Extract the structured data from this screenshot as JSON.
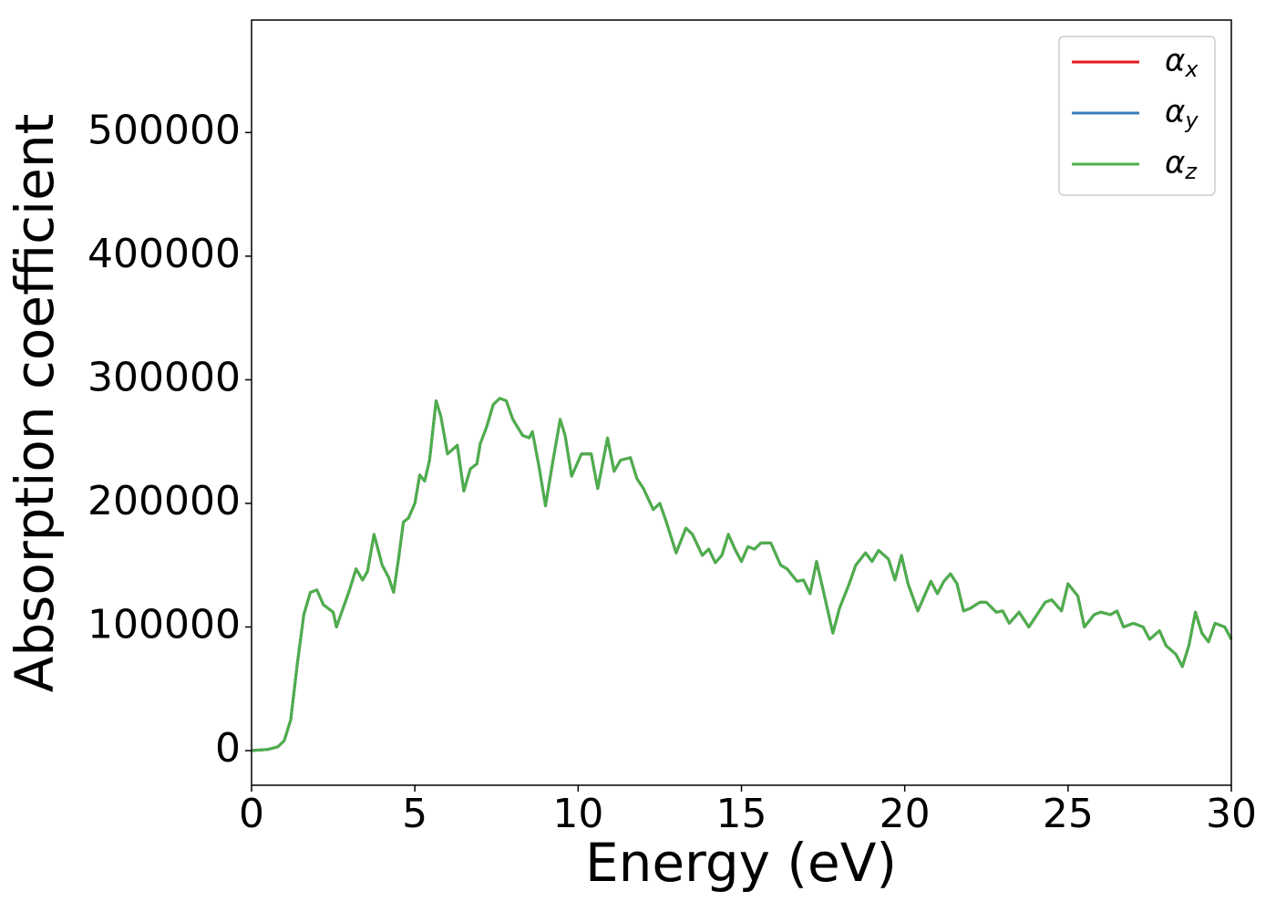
{
  "chart_data": {
    "type": "line",
    "xlabel": "Energy (eV)",
    "ylabel": "Absorption coefficient",
    "x": [
      0,
      0.5,
      0.8,
      1.0,
      1.2,
      1.4,
      1.6,
      1.8,
      2.0,
      2.2,
      2.35,
      2.5,
      2.6,
      2.8,
      3.0,
      3.2,
      3.4,
      3.55,
      3.75,
      3.9,
      4.0,
      4.2,
      4.35,
      4.5,
      4.65,
      4.8,
      5.0,
      5.15,
      5.3,
      5.45,
      5.65,
      5.8,
      6.0,
      6.3,
      6.5,
      6.7,
      6.9,
      7.0,
      7.2,
      7.4,
      7.6,
      7.8,
      8.0,
      8.3,
      8.5,
      8.6,
      8.8,
      9.0,
      9.2,
      9.45,
      9.6,
      9.8,
      10.1,
      10.4,
      10.6,
      10.9,
      11.1,
      11.3,
      11.6,
      11.8,
      12.0,
      12.3,
      12.5,
      12.7,
      13.0,
      13.3,
      13.5,
      13.8,
      14.0,
      14.2,
      14.4,
      14.6,
      14.8,
      15.0,
      15.2,
      15.4,
      15.6,
      15.9,
      16.2,
      16.4,
      16.7,
      16.9,
      17.1,
      17.3,
      17.5,
      17.8,
      18.0,
      18.3,
      18.5,
      18.8,
      19.0,
      19.2,
      19.5,
      19.7,
      19.9,
      20.1,
      20.4,
      20.6,
      20.8,
      21.0,
      21.2,
      21.4,
      21.6,
      21.8,
      22.0,
      22.3,
      22.5,
      22.8,
      23.0,
      23.2,
      23.5,
      23.8,
      24.0,
      24.3,
      24.5,
      24.8,
      25.0,
      25.3,
      25.5,
      25.8,
      26.0,
      26.3,
      26.5,
      26.7,
      27.0,
      27.3,
      27.5,
      27.8,
      28.0,
      28.3,
      28.5,
      28.7,
      28.9,
      29.1,
      29.3,
      29.5,
      29.8,
      30.0
    ],
    "series": [
      {
        "name": "αx",
        "color": "#e41a1c",
        "values": [
          0,
          1000,
          3000,
          8000,
          25000,
          70000,
          110000,
          128000,
          130000,
          118000,
          115000,
          112000,
          100000,
          115000,
          130000,
          147000,
          138000,
          145000,
          175000,
          160000,
          150000,
          140000,
          128000,
          155000,
          185000,
          188000,
          200000,
          223000,
          218000,
          235000,
          283000,
          270000,
          240000,
          247000,
          210000,
          228000,
          232000,
          248000,
          262000,
          280000,
          285000,
          283000,
          268000,
          255000,
          253000,
          258000,
          230000,
          198000,
          230000,
          268000,
          255000,
          222000,
          240000,
          240000,
          212000,
          253000,
          226000,
          235000,
          237000,
          220000,
          212000,
          195000,
          200000,
          185000,
          160000,
          180000,
          175000,
          158000,
          163000,
          152000,
          158000,
          175000,
          163000,
          153000,
          165000,
          163000,
          168000,
          168000,
          150000,
          147000,
          137000,
          138000,
          127000,
          153000,
          130000,
          95000,
          115000,
          135000,
          150000,
          160000,
          153000,
          162000,
          155000,
          138000,
          158000,
          135000,
          113000,
          125000,
          137000,
          127000,
          137000,
          143000,
          135000,
          113000,
          115000,
          120000,
          120000,
          112000,
          113000,
          103000,
          112000,
          100000,
          108000,
          120000,
          122000,
          113000,
          135000,
          125000,
          100000,
          110000,
          112000,
          110000,
          113000,
          100000,
          103000,
          100000,
          90000,
          97000,
          85000,
          78000,
          68000,
          85000,
          112000,
          95000,
          88000,
          103000,
          100000,
          90000
        ]
      },
      {
        "name": "αy",
        "color": "#377eb8",
        "values": [
          0,
          1000,
          3000,
          8000,
          25000,
          70000,
          110000,
          128000,
          130000,
          118000,
          115000,
          112000,
          100000,
          115000,
          130000,
          147000,
          138000,
          145000,
          175000,
          160000,
          150000,
          140000,
          128000,
          155000,
          185000,
          188000,
          200000,
          223000,
          218000,
          235000,
          283000,
          270000,
          240000,
          247000,
          210000,
          228000,
          232000,
          248000,
          262000,
          280000,
          285000,
          283000,
          268000,
          255000,
          253000,
          258000,
          230000,
          198000,
          230000,
          268000,
          255000,
          222000,
          240000,
          240000,
          212000,
          253000,
          226000,
          235000,
          237000,
          220000,
          212000,
          195000,
          200000,
          185000,
          160000,
          180000,
          175000,
          158000,
          163000,
          152000,
          158000,
          175000,
          163000,
          153000,
          165000,
          163000,
          168000,
          168000,
          150000,
          147000,
          137000,
          138000,
          127000,
          153000,
          130000,
          95000,
          115000,
          135000,
          150000,
          160000,
          153000,
          162000,
          155000,
          138000,
          158000,
          135000,
          113000,
          125000,
          137000,
          127000,
          137000,
          143000,
          135000,
          113000,
          115000,
          120000,
          120000,
          112000,
          113000,
          103000,
          112000,
          100000,
          108000,
          120000,
          122000,
          113000,
          135000,
          125000,
          100000,
          110000,
          112000,
          110000,
          113000,
          100000,
          103000,
          100000,
          90000,
          97000,
          85000,
          78000,
          68000,
          85000,
          112000,
          95000,
          88000,
          103000,
          100000,
          90000
        ]
      },
      {
        "name": "αz",
        "color": "#4daf4a",
        "values": [
          0,
          1000,
          3000,
          8000,
          25000,
          70000,
          110000,
          128000,
          130000,
          118000,
          115000,
          112000,
          100000,
          115000,
          130000,
          147000,
          138000,
          145000,
          175000,
          160000,
          150000,
          140000,
          128000,
          155000,
          185000,
          188000,
          200000,
          223000,
          218000,
          235000,
          283000,
          270000,
          240000,
          247000,
          210000,
          228000,
          232000,
          248000,
          262000,
          280000,
          285000,
          283000,
          268000,
          255000,
          253000,
          258000,
          230000,
          198000,
          230000,
          268000,
          255000,
          222000,
          240000,
          240000,
          212000,
          253000,
          226000,
          235000,
          237000,
          220000,
          212000,
          195000,
          200000,
          185000,
          160000,
          180000,
          175000,
          158000,
          163000,
          152000,
          158000,
          175000,
          163000,
          153000,
          165000,
          163000,
          168000,
          168000,
          150000,
          147000,
          137000,
          138000,
          127000,
          153000,
          130000,
          95000,
          115000,
          135000,
          150000,
          160000,
          153000,
          162000,
          155000,
          138000,
          158000,
          135000,
          113000,
          125000,
          137000,
          127000,
          137000,
          143000,
          135000,
          113000,
          115000,
          120000,
          120000,
          112000,
          113000,
          103000,
          112000,
          100000,
          108000,
          120000,
          122000,
          113000,
          135000,
          125000,
          100000,
          110000,
          112000,
          110000,
          113000,
          100000,
          103000,
          100000,
          90000,
          97000,
          85000,
          78000,
          68000,
          85000,
          112000,
          95000,
          88000,
          103000,
          100000,
          90000
        ]
      }
    ],
    "xlim": [
      0,
      30
    ],
    "xticks": [
      0,
      5,
      10,
      15,
      20,
      25,
      30
    ],
    "ylim": [
      -28000,
      591000
    ],
    "yticks": [
      0,
      100000,
      200000,
      300000,
      400000,
      500000
    ],
    "legend": "upper right",
    "grid": false
  }
}
